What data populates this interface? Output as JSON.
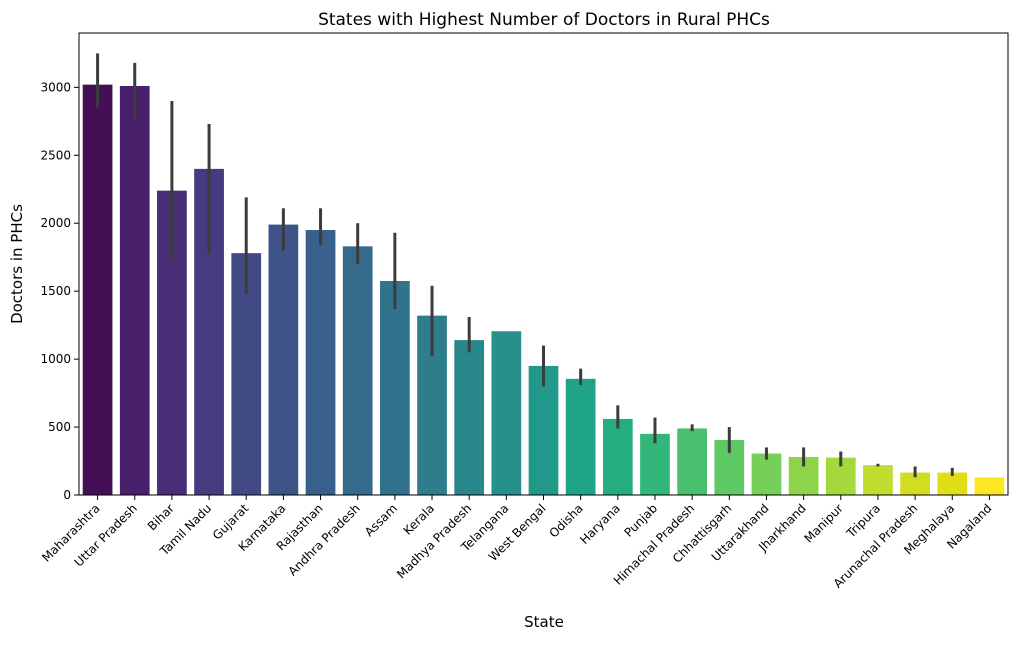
{
  "chart_data": {
    "type": "bar",
    "title": "States with Highest Number of Doctors in Rural PHCs",
    "xlabel": "State",
    "ylabel": "Doctors in PHCs",
    "ylim": [
      0,
      3400
    ],
    "yticks": [
      0,
      500,
      1000,
      1500,
      2000,
      2500,
      3000
    ],
    "grid": false,
    "legend": "none",
    "categories": [
      "Maharashtra",
      "Uttar Pradesh",
      "Bihar",
      "Tamil Nadu",
      "Gujarat",
      "Karnataka",
      "Rajasthan",
      "Andhra Pradesh",
      "Assam",
      "Kerala",
      "Madhya Pradesh",
      "Telangana",
      "West Bengal",
      "Odisha",
      "Haryana",
      "Punjab",
      "Himachal Pradesh",
      "Chhattisgarh",
      "Uttarakhand",
      "Jharkhand",
      "Manipur",
      "Tripura",
      "Arunachal Pradesh",
      "Meghalaya",
      "Nagaland"
    ],
    "values": [
      3020,
      3010,
      2240,
      2400,
      1780,
      1990,
      1950,
      1830,
      1575,
      1320,
      1140,
      1205,
      950,
      855,
      560,
      450,
      490,
      405,
      305,
      280,
      275,
      220,
      165,
      165,
      130
    ],
    "error_low": [
      2850,
      2760,
      1740,
      1780,
      1480,
      1800,
      1840,
      1700,
      1370,
      1020,
      1050,
      null,
      800,
      810,
      490,
      380,
      470,
      310,
      260,
      210,
      210,
      210,
      130,
      140,
      null
    ],
    "error_high": [
      3250,
      3180,
      2900,
      2730,
      2190,
      2110,
      2110,
      2000,
      1930,
      1540,
      1310,
      null,
      1100,
      930,
      660,
      570,
      520,
      500,
      350,
      350,
      320,
      230,
      210,
      200,
      null
    ],
    "colors": [
      "#440f55",
      "#471f6a",
      "#482e76",
      "#463a80",
      "#424a86",
      "#3e5489",
      "#39608b",
      "#356a8c",
      "#31738d",
      "#2d7d8d",
      "#29878c",
      "#26918b",
      "#21998a",
      "#1fa386",
      "#24ad81",
      "#32b77a",
      "#48c06f",
      "#5ec962",
      "#75cf58",
      "#8ed44a",
      "#a4d93e",
      "#bfdc2f",
      "#d2dd22",
      "#e0df17",
      "#fde725"
    ],
    "error_color": "#3c3c3c"
  }
}
